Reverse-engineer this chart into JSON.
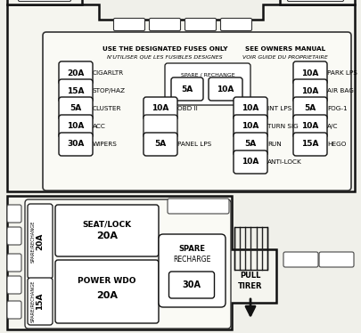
{
  "bg_color": "#f0f0ea",
  "panel_color": "#f5f5ef",
  "border_color": "#111111",
  "title_line1": "USE THE DESIGNATED FUSES ONLY",
  "title_line2": "N'UTILISER QUE LES FUSIBLES DESIGNES",
  "title_line3": "SEE OWNERS MANUAL",
  "title_line4": "VOIR GUIDE DU PROPRIETAIRE",
  "fuses_left": [
    {
      "amp": "20A",
      "label": "CIGARLTR"
    },
    {
      "amp": "15A",
      "label": "STOP/HAZ"
    },
    {
      "amp": "5A",
      "label": "CLUSTER"
    },
    {
      "amp": "10A",
      "label": "ACC"
    },
    {
      "amp": "30A",
      "label": "WIPERS"
    }
  ],
  "fuses_center_col": [
    {
      "amp": "10A",
      "label": "OBD II",
      "row": 2
    },
    {
      "amp": "",
      "label": "",
      "row": 3
    },
    {
      "amp": "5A",
      "label": "PANEL LPS",
      "row": 4
    }
  ],
  "fuses_mid_col": [
    {
      "amp": "10A",
      "label": "INT LPS",
      "row": 2
    },
    {
      "amp": "10A",
      "label": "TURN SIG",
      "row": 3
    },
    {
      "amp": "5A",
      "label": "RUN",
      "row": 4
    },
    {
      "amp": "10A",
      "label": "ANTI-LOCK",
      "row": 5
    }
  ],
  "fuses_right": [
    {
      "amp": "10A",
      "label": "PARK LPS"
    },
    {
      "amp": "10A",
      "label": "AIR BAG"
    },
    {
      "amp": "5A",
      "label": "FOG-1"
    },
    {
      "amp": "10A",
      "label": "A/C"
    },
    {
      "amp": "15A",
      "label": "HEGO"
    }
  ],
  "spare_top": [
    "5A",
    "10A"
  ]
}
